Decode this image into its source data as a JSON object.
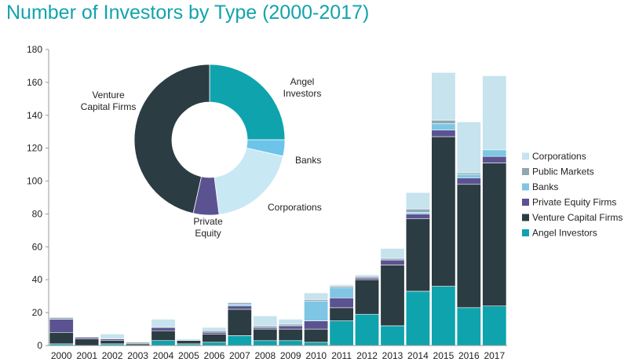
{
  "title": "Number of Investors by Type (2000-2017)",
  "colors": {
    "title": "#12a3ad",
    "angel": "#0fa3ad",
    "vc": "#2b3c43",
    "pe": "#5b5391",
    "banks": "#7ec6e4",
    "public": "#8fa7b3",
    "corporations": "#c6e3ee"
  },
  "chart_data": [
    {
      "type": "bar",
      "stacked": true,
      "categories": [
        "2000",
        "2001",
        "2002",
        "2003",
        "2004",
        "2005",
        "2006",
        "2007",
        "2008",
        "2009",
        "2010",
        "2011",
        "2012",
        "2013",
        "2014",
        "2015",
        "2016",
        "2017"
      ],
      "ylim": [
        0,
        180
      ],
      "yticks": [
        "0",
        "20",
        "40",
        "60",
        "80",
        "100",
        "120",
        "140",
        "160",
        "180"
      ],
      "grid": false,
      "legend_placement": "right",
      "series": [
        {
          "name": "Angel Investors",
          "color": "#0fa3ad",
          "values": [
            1,
            0,
            1,
            0,
            3,
            1,
            2,
            6,
            3,
            3,
            2,
            15,
            19,
            12,
            33,
            36,
            23,
            24
          ]
        },
        {
          "name": "Venture Capital Firms",
          "color": "#2b3c43",
          "values": [
            7,
            4,
            2,
            1,
            6,
            2,
            5,
            16,
            7,
            7,
            8,
            8,
            21,
            37,
            44,
            91,
            75,
            87
          ]
        },
        {
          "name": "Private Equity Firms",
          "color": "#5b5391",
          "values": [
            8,
            1,
            1,
            0,
            2,
            0,
            1,
            2,
            1,
            2,
            5,
            6,
            1,
            3,
            3,
            4,
            4,
            4
          ]
        },
        {
          "name": "Banks",
          "color": "#7ec6e4",
          "values": [
            0,
            0,
            0,
            0,
            0,
            0,
            0,
            1,
            0,
            0,
            12,
            6,
            0,
            0,
            1,
            4,
            2,
            4
          ]
        },
        {
          "name": "Public Markets",
          "color": "#8fa7b3",
          "values": [
            1,
            0,
            0,
            1,
            0,
            0,
            1,
            1,
            1,
            1,
            1,
            1,
            1,
            1,
            2,
            2,
            1,
            0
          ]
        },
        {
          "name": "Corporations",
          "color": "#c6e3ee",
          "values": [
            0,
            0,
            3,
            0,
            5,
            1,
            2,
            0,
            6,
            3,
            4,
            1,
            1,
            6,
            10,
            29,
            31,
            45
          ]
        }
      ]
    },
    {
      "type": "pie",
      "donut": true,
      "labels": [
        "Angel Investors",
        "Banks",
        "Corporations",
        "Private Equity",
        "Venture Capital Firms"
      ],
      "values": [
        25,
        3.5,
        19.5,
        5.5,
        46.5
      ],
      "colors": [
        "#0fa3ad",
        "#6cc4ea",
        "#c8e8f4",
        "#5b5391",
        "#2b3c43"
      ]
    }
  ],
  "donut_labels": {
    "angel": [
      "Angel",
      "Investors"
    ],
    "banks": [
      "Banks"
    ],
    "corporations": [
      "Corporations"
    ],
    "pe": [
      "Private",
      "Equity"
    ],
    "vc": [
      "Venture",
      "Capital Firms"
    ]
  }
}
